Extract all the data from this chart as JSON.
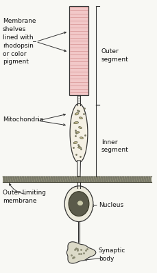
{
  "bg_color": "#f8f8f4",
  "text_color": "#111111",
  "line_color": "#333333",
  "pink_fill": "#f2c8c8",
  "pink_stripe": "#d89898",
  "cell_outline": "#444444",
  "labels": {
    "membrane_shelves": "Membrane\nshelves\nlined with\nrhodopsin\nor color\npigment",
    "mitochondria": "Mitochondria",
    "outer_limiting": "Outer limiting\nmembrane",
    "outer_segment": "Outer\nsegment",
    "inner_segment": "Inner\nsegment",
    "nucleus": "Nucleus",
    "synaptic_body": "Synaptic\nbody"
  },
  "figsize": [
    2.29,
    3.96
  ],
  "dpi": 100
}
